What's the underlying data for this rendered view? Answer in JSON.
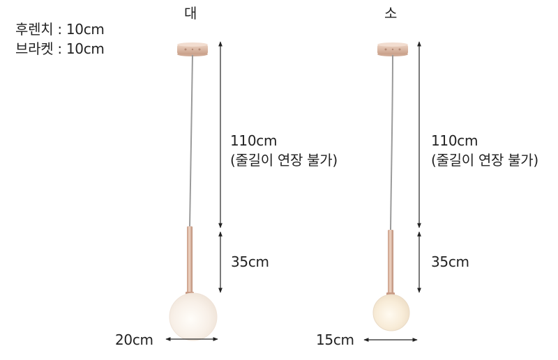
{
  "specs": {
    "canopy": "후렌치 : 10cm",
    "bracket": "브라켓 : 10cm"
  },
  "large": {
    "title": "대",
    "cord_length": "110cm",
    "cord_note": "(줄길이 연장 불가)",
    "stem_length": "35cm",
    "shade_width": "20cm"
  },
  "small": {
    "title": "소",
    "cord_length": "110cm",
    "cord_note": "(줄길이 연장 불가)",
    "stem_length": "35cm",
    "shade_width": "15cm"
  },
  "colors": {
    "rose_gold": "#d9b9a4",
    "cord": "#9a9a9a",
    "glass": "#f7efe6",
    "dimension_line": "#222222"
  }
}
